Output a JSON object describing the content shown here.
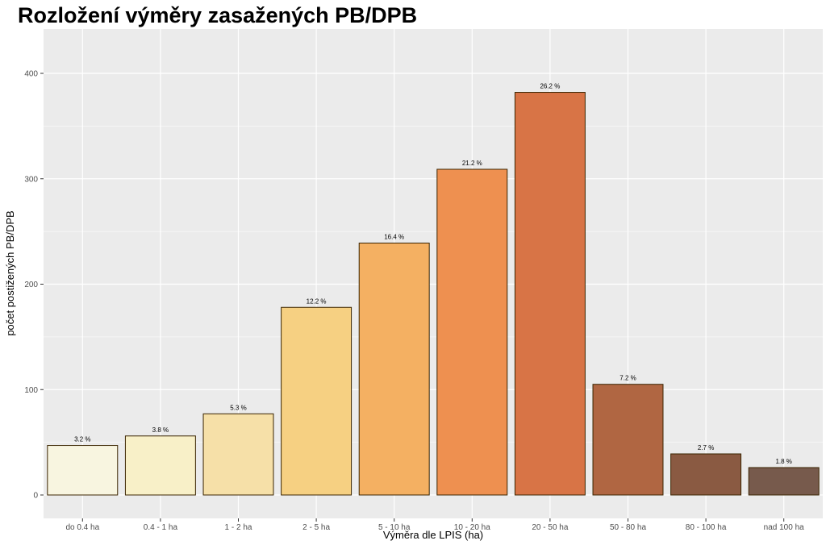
{
  "chart_data": {
    "type": "bar",
    "title": "Rozložení výměry zasažených PB/DPB",
    "xlabel": "Výměra dle LPIS (ha)",
    "ylabel": "počet postižených PB/DPB",
    "ylim": [
      0,
      435
    ],
    "yticks": [
      0,
      100,
      200,
      300,
      400
    ],
    "grid": true,
    "categories": [
      "do 0.4 ha",
      "0.4 - 1 ha",
      "1 - 2 ha",
      "2 - 5 ha",
      "5 - 10 ha",
      "10 - 20 ha",
      "20 - 50 ha",
      "50 - 80 ha",
      "80 - 100 ha",
      "nad 100 ha"
    ],
    "values": [
      47,
      56,
      77,
      178,
      239,
      309,
      382,
      105,
      39,
      26
    ],
    "labels": [
      "3.2 %",
      "3.8 %",
      "5.3 %",
      "12.2 %",
      "16.4 %",
      "21.2 %",
      "26.2 %",
      "7.2 %",
      "2.7 %",
      "1.8 %"
    ],
    "colors": [
      "#f8f5e0",
      "#f8f0c8",
      "#f6e0a8",
      "#f6d082",
      "#f4b062",
      "#ee9050",
      "#d87446",
      "#b06642",
      "#8a5a42",
      "#775a4c"
    ],
    "bar_stroke": "#3a2400",
    "panel_background": "#ebebeb",
    "grid_color": "#ffffff"
  }
}
